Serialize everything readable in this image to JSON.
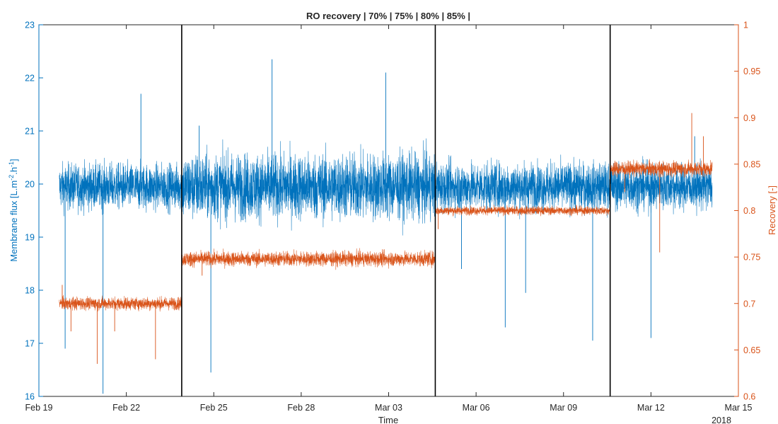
{
  "chart_data": {
    "type": "line",
    "title": "RO recovery | 70% | 75% | 80% | 85% |",
    "xlabel": "Time",
    "x_year_label": "2018",
    "x_ticks": [
      "Feb 19",
      "Feb 22",
      "Feb 25",
      "Feb 28",
      "Mar 03",
      "Mar 06",
      "Mar 09",
      "Mar 12",
      "Mar 15"
    ],
    "x_tick_days": [
      0,
      3,
      6,
      9,
      12,
      15,
      18,
      21,
      24
    ],
    "xlim_days": [
      0,
      24
    ],
    "y_left": {
      "label": "Membrane flux [L.m-2.h-1]",
      "label_parts": [
        "Membrane flux [L.m",
        "-2",
        ".h",
        "-1",
        "]"
      ],
      "lim": [
        16,
        23
      ],
      "ticks": [
        "16",
        "17",
        "18",
        "19",
        "20",
        "21",
        "22",
        "23"
      ],
      "color": "#0072BD"
    },
    "y_right": {
      "label": "Recovery [-]",
      "lim": [
        0.6,
        1.0
      ],
      "ticks": [
        "0.6",
        "0.65",
        "0.7",
        "0.75",
        "0.8",
        "0.85",
        "0.9",
        "0.95",
        "1"
      ],
      "color": "#D95319"
    },
    "phase_boundaries_days": [
      4.9,
      13.6,
      19.6
    ],
    "grid": false,
    "series": [
      {
        "axis": "left",
        "color": "#0072BD",
        "segments": [
          {
            "start": 0.7,
            "end": 4.9,
            "mean": 19.95,
            "noise": 0.38
          },
          {
            "start": 4.9,
            "end": 13.6,
            "mean": 19.95,
            "noise": 0.55
          },
          {
            "start": 13.6,
            "end": 19.6,
            "mean": 19.95,
            "noise": 0.4
          },
          {
            "start": 19.6,
            "end": 23.1,
            "mean": 19.95,
            "noise": 0.38
          }
        ],
        "spikes": [
          {
            "x": 0.9,
            "y": 16.9
          },
          {
            "x": 2.2,
            "y": 16.05
          },
          {
            "x": 3.5,
            "y": 21.7
          },
          {
            "x": 5.5,
            "y": 21.1
          },
          {
            "x": 5.9,
            "y": 16.45
          },
          {
            "x": 8.0,
            "y": 22.35
          },
          {
            "x": 11.9,
            "y": 22.1
          },
          {
            "x": 14.5,
            "y": 18.4
          },
          {
            "x": 16.0,
            "y": 17.3
          },
          {
            "x": 16.7,
            "y": 17.95
          },
          {
            "x": 19.0,
            "y": 17.05
          },
          {
            "x": 21.0,
            "y": 17.1
          },
          {
            "x": 22.5,
            "y": 20.9
          }
        ]
      },
      {
        "axis": "right",
        "color": "#D95319",
        "segments": [
          {
            "start": 0.7,
            "end": 4.9,
            "mean": 0.7,
            "noise": 0.006
          },
          {
            "start": 4.9,
            "end": 13.6,
            "mean": 0.748,
            "noise": 0.007
          },
          {
            "start": 13.6,
            "end": 19.6,
            "mean": 0.8,
            "noise": 0.004
          },
          {
            "start": 19.6,
            "end": 23.1,
            "mean": 0.845,
            "noise": 0.007
          }
        ],
        "spikes": [
          {
            "x": 0.8,
            "y": 0.72
          },
          {
            "x": 1.1,
            "y": 0.67
          },
          {
            "x": 2.0,
            "y": 0.635
          },
          {
            "x": 2.6,
            "y": 0.67
          },
          {
            "x": 4.0,
            "y": 0.64
          },
          {
            "x": 5.2,
            "y": 0.74
          },
          {
            "x": 5.6,
            "y": 0.73
          },
          {
            "x": 13.6,
            "y": 0.68
          },
          {
            "x": 13.7,
            "y": 0.78
          },
          {
            "x": 20.1,
            "y": 0.82
          },
          {
            "x": 21.3,
            "y": 0.755
          },
          {
            "x": 22.4,
            "y": 0.905
          },
          {
            "x": 22.8,
            "y": 0.88
          }
        ]
      }
    ]
  }
}
